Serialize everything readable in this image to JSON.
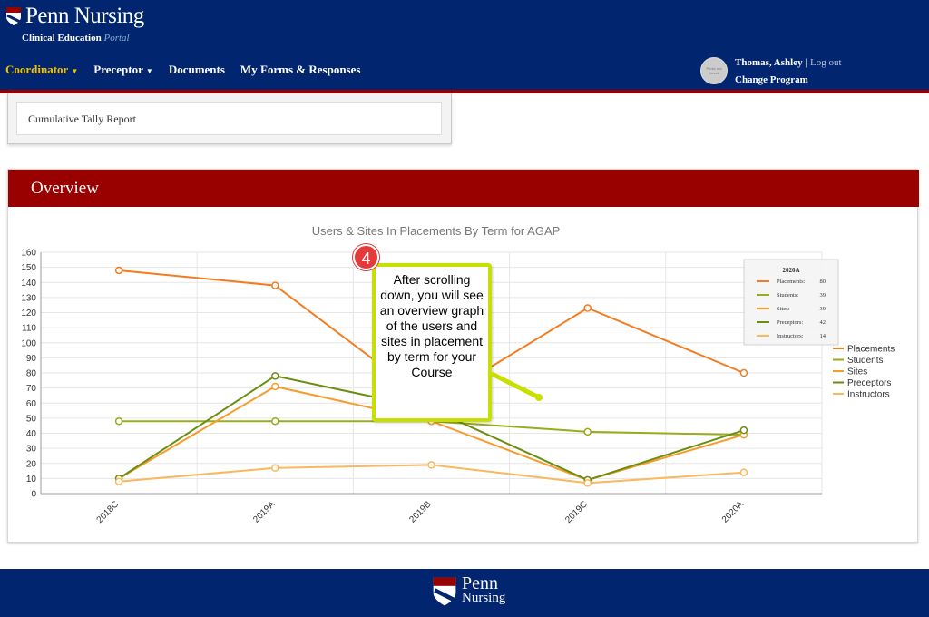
{
  "header": {
    "brand": "Penn Nursing",
    "portal_prefix": "Clinical Education",
    "portal_word": "Portal",
    "nav": [
      {
        "label": "Coordinator",
        "dropdown": true,
        "active": true
      },
      {
        "label": "Preceptor",
        "dropdown": true,
        "active": false
      },
      {
        "label": "Documents",
        "dropdown": false,
        "active": false
      },
      {
        "label": "My Forms & Responses",
        "dropdown": false,
        "active": false
      }
    ],
    "user_name": "Thomas, Ashley",
    "separator": "|",
    "logout": "Log out",
    "change_program": "Change Program",
    "avatar_text": "Photo not found"
  },
  "reports": {
    "item": "Cumulative Tally Report"
  },
  "overview": {
    "title": "Overview"
  },
  "chart_data": {
    "type": "line",
    "title": "Users & Sites In Placements By Term for AGAP",
    "categories": [
      "2018C",
      "2019A",
      "2019B",
      "2019C",
      "2020A"
    ],
    "ylim": [
      0,
      160
    ],
    "yticks": [
      0,
      10,
      20,
      30,
      40,
      50,
      60,
      70,
      80,
      90,
      100,
      110,
      120,
      130,
      140,
      150,
      160
    ],
    "grid": true,
    "legend_placement": "right",
    "series": [
      {
        "name": "Placements",
        "color": "#f47c20",
        "values": [
          148,
          138,
          60,
          123,
          80
        ]
      },
      {
        "name": "Students",
        "color": "#9aab1e",
        "values": [
          48,
          48,
          48,
          41,
          39
        ]
      },
      {
        "name": "Sites",
        "color": "#f89b2e",
        "values": [
          10,
          71,
          48,
          9,
          39
        ]
      },
      {
        "name": "Preceptors",
        "color": "#6b8e10",
        "values": [
          10,
          78,
          56,
          9,
          42
        ]
      },
      {
        "name": "Instructors",
        "color": "#fbb75c",
        "values": [
          8,
          17,
          19,
          7,
          14
        ]
      }
    ],
    "tooltip": {
      "title": "2020A",
      "rows": [
        {
          "label": "Placements:",
          "value": "80",
          "color": "#f47c20"
        },
        {
          "label": "Students:",
          "value": "39",
          "color": "#9aab1e"
        },
        {
          "label": "Sites:",
          "value": "39",
          "color": "#f89b2e"
        },
        {
          "label": "Preceptors:",
          "value": "42",
          "color": "#6b8e10"
        },
        {
          "label": "Instructors:",
          "value": "14",
          "color": "#fbb75c"
        }
      ]
    }
  },
  "callout": {
    "number": "4",
    "text": "After scrolling down, you will see an overview graph of the users and sites in placement by term for your Course",
    "border_color": "#c7e000"
  },
  "footer": {
    "line1": "Penn",
    "line2": "Nursing"
  }
}
